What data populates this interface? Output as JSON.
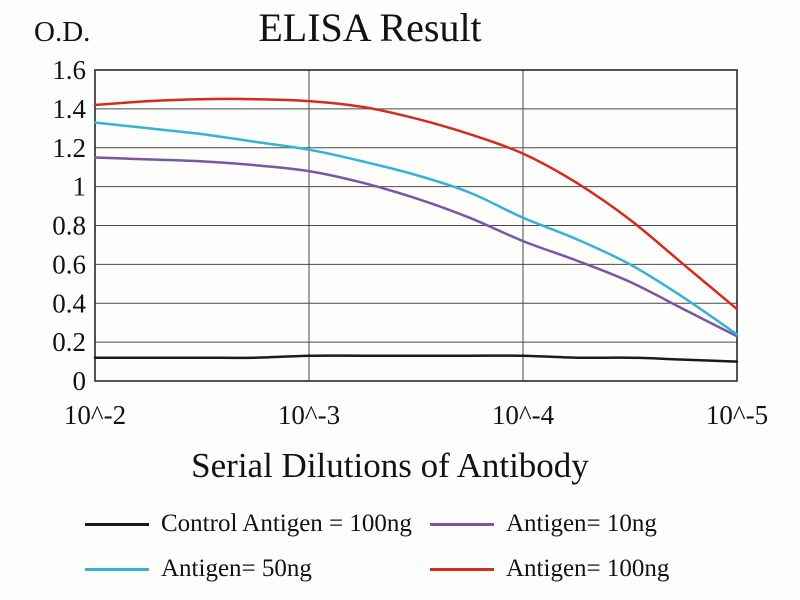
{
  "chart_data": {
    "type": "line",
    "title": "ELISA Result",
    "ylabel": "O.D.",
    "xlabel": "Serial Dilutions of Antibody",
    "ylim": [
      0,
      1.6
    ],
    "grid": true,
    "legend_position": "below",
    "y_ticks": [
      0,
      0.2,
      0.4,
      0.6,
      0.8,
      1,
      1.2,
      1.4,
      1.6
    ],
    "y_tick_labels": [
      "0",
      "0.2",
      "0.4",
      "0.6",
      "0.8",
      "1",
      "1.2",
      "1.4",
      "1.6"
    ],
    "x_tick_values": [
      -2,
      -3,
      -4,
      -5
    ],
    "x_tick_labels": [
      "10^-2",
      "10^-3",
      "10^-4",
      "10^-5"
    ],
    "x": [
      -2,
      -2.25,
      -2.5,
      -2.75,
      -3,
      -3.25,
      -3.5,
      -3.75,
      -4,
      -4.25,
      -4.5,
      -4.75,
      -5
    ],
    "series": [
      {
        "id": "control-antigen-100ng",
        "name": "Control Antigen = 100ng",
        "color": "#1a1a1a",
        "values": [
          0.12,
          0.12,
          0.12,
          0.12,
          0.13,
          0.13,
          0.13,
          0.13,
          0.13,
          0.12,
          0.12,
          0.11,
          0.1
        ]
      },
      {
        "id": "antigen-10ng",
        "name": "Antigen= 10ng",
        "color": "#7a57a4",
        "values": [
          1.15,
          1.14,
          1.13,
          1.11,
          1.08,
          1.02,
          0.94,
          0.84,
          0.72,
          0.62,
          0.51,
          0.37,
          0.23
        ]
      },
      {
        "id": "antigen-50ng",
        "name": "Antigen= 50ng",
        "color": "#35b2d8",
        "values": [
          1.33,
          1.3,
          1.27,
          1.23,
          1.19,
          1.13,
          1.06,
          0.97,
          0.84,
          0.73,
          0.6,
          0.43,
          0.24
        ]
      },
      {
        "id": "antigen-100ng",
        "name": "Antigen= 100ng",
        "color": "#d32b1e",
        "values": [
          1.42,
          1.44,
          1.45,
          1.45,
          1.44,
          1.41,
          1.35,
          1.27,
          1.17,
          1.02,
          0.83,
          0.6,
          0.37
        ]
      }
    ],
    "colors": {
      "grid": "#4a4a4a",
      "border": "#2a2a2a",
      "text": "#121212",
      "background": "#fdfdfb"
    }
  }
}
